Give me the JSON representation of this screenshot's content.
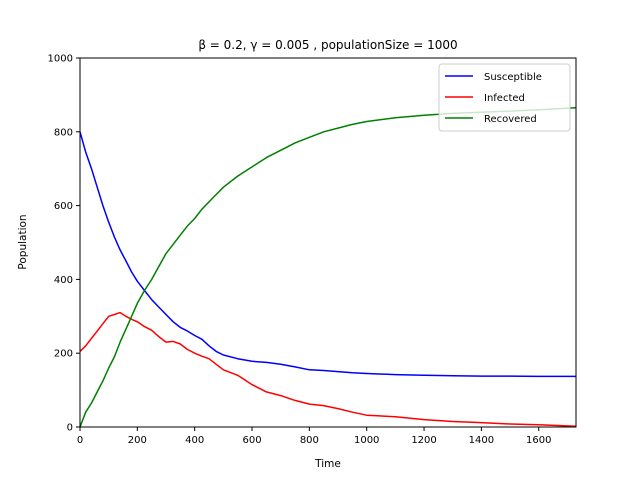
{
  "chart_data": {
    "type": "line",
    "title": "β = 0.2,  γ = 0.005 , populationSize = 1000",
    "xlabel": "Time",
    "ylabel": "Population",
    "xlim": [
      0,
      1730
    ],
    "ylim": [
      0,
      1000
    ],
    "xticks": [
      "0",
      "200",
      "400",
      "600",
      "800",
      "1000",
      "1200",
      "1400",
      "1600"
    ],
    "yticks": [
      "0",
      "200",
      "400",
      "600",
      "800",
      "1000"
    ],
    "grid": false,
    "legend_position": "top-right",
    "series": [
      {
        "name": "Susceptible",
        "color": "#0000ff",
        "x": [
          0,
          20,
          40,
          60,
          80,
          100,
          120,
          140,
          160,
          180,
          200,
          225,
          250,
          275,
          300,
          325,
          350,
          375,
          400,
          425,
          450,
          475,
          500,
          550,
          600,
          650,
          700,
          750,
          800,
          850,
          900,
          950,
          1000,
          1100,
          1200,
          1300,
          1400,
          1500,
          1600,
          1730
        ],
        "y": [
          800,
          745,
          700,
          650,
          600,
          555,
          515,
          480,
          450,
          420,
          395,
          370,
          345,
          325,
          305,
          285,
          270,
          260,
          248,
          238,
          220,
          205,
          195,
          185,
          178,
          175,
          170,
          163,
          155,
          153,
          150,
          147,
          145,
          142,
          140,
          139,
          138,
          138,
          137,
          137
        ]
      },
      {
        "name": "Infected",
        "color": "#ff0000",
        "x": [
          0,
          20,
          40,
          60,
          80,
          100,
          120,
          140,
          160,
          180,
          200,
          225,
          250,
          275,
          300,
          325,
          350,
          375,
          400,
          425,
          450,
          475,
          500,
          550,
          600,
          650,
          700,
          750,
          800,
          850,
          900,
          950,
          1000,
          1100,
          1200,
          1300,
          1400,
          1500,
          1600,
          1730
        ],
        "y": [
          205,
          220,
          240,
          260,
          280,
          300,
          305,
          310,
          300,
          292,
          285,
          272,
          262,
          245,
          230,
          232,
          225,
          210,
          200,
          192,
          185,
          170,
          155,
          140,
          115,
          95,
          85,
          72,
          62,
          58,
          50,
          40,
          32,
          28,
          20,
          15,
          12,
          8,
          6,
          2
        ]
      },
      {
        "name": "Recovered",
        "color": "#008000",
        "x": [
          0,
          20,
          40,
          60,
          80,
          100,
          120,
          140,
          160,
          180,
          200,
          225,
          250,
          275,
          300,
          325,
          350,
          375,
          400,
          425,
          450,
          475,
          500,
          550,
          600,
          650,
          700,
          750,
          800,
          850,
          900,
          950,
          1000,
          1100,
          1200,
          1300,
          1400,
          1500,
          1600,
          1730
        ],
        "y": [
          0,
          40,
          65,
          95,
          125,
          160,
          190,
          230,
          265,
          300,
          335,
          370,
          400,
          435,
          470,
          495,
          520,
          545,
          565,
          590,
          610,
          630,
          650,
          680,
          705,
          730,
          750,
          770,
          785,
          800,
          810,
          820,
          828,
          838,
          845,
          850,
          853,
          856,
          860,
          865
        ]
      }
    ]
  }
}
